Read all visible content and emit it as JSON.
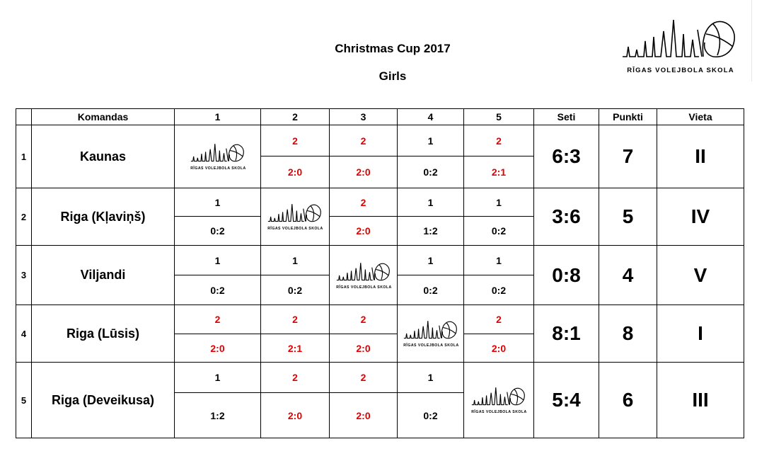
{
  "title": "Christmas Cup 2017",
  "subtitle": "Girls",
  "logo_text": "RĪGAS VOLEJBOLA SKOLA",
  "colors": {
    "win": "#e00000",
    "loss": "#000000",
    "border": "#000000"
  },
  "headers": {
    "index": "",
    "team": "Komandas",
    "c1": "1",
    "c2": "2",
    "c3": "3",
    "c4": "4",
    "c5": "5",
    "sets": "Seti",
    "points": "Punkti",
    "place": "Vieta"
  },
  "rows": [
    {
      "num": "1",
      "team": "Kaunas",
      "r": [
        {
          "pts": "",
          "score": "",
          "win": false,
          "self": true
        },
        {
          "pts": "2",
          "score": "2:0",
          "win": true
        },
        {
          "pts": "2",
          "score": "2:0",
          "win": true
        },
        {
          "pts": "1",
          "score": "0:2",
          "win": false
        },
        {
          "pts": "2",
          "score": "2:1",
          "win": true
        }
      ],
      "sets": "6:3",
      "points": "7",
      "place": "II"
    },
    {
      "num": "2",
      "team": "Riga (Kļaviņš)",
      "r": [
        {
          "pts": "1",
          "score": "0:2",
          "win": false
        },
        {
          "pts": "",
          "score": "",
          "win": false,
          "self": true
        },
        {
          "pts": "2",
          "score": "2:0",
          "win": true
        },
        {
          "pts": "1",
          "score": "1:2",
          "win": false
        },
        {
          "pts": "1",
          "score": "0:2",
          "win": false
        }
      ],
      "sets": "3:6",
      "points": "5",
      "place": "IV"
    },
    {
      "num": "3",
      "team": "Viljandi",
      "r": [
        {
          "pts": "1",
          "score": "0:2",
          "win": false
        },
        {
          "pts": "1",
          "score": "0:2",
          "win": false
        },
        {
          "pts": "",
          "score": "",
          "win": false,
          "self": true
        },
        {
          "pts": "1",
          "score": "0:2",
          "win": false
        },
        {
          "pts": "1",
          "score": "0:2",
          "win": false
        }
      ],
      "sets": "0:8",
      "points": "4",
      "place": "V"
    },
    {
      "num": "4",
      "team": "Riga (Lūsis)",
      "r": [
        {
          "pts": "2",
          "score": "2:0",
          "win": true
        },
        {
          "pts": "2",
          "score": "2:1",
          "win": true
        },
        {
          "pts": "2",
          "score": "2:0",
          "win": true
        },
        {
          "pts": "",
          "score": "",
          "win": false,
          "self": true
        },
        {
          "pts": "2",
          "score": "2:0",
          "win": true
        }
      ],
      "sets": "8:1",
      "points": "8",
      "place": "I"
    },
    {
      "num": "5",
      "team": "Riga (Deveikusa)",
      "r": [
        {
          "pts": "1",
          "score": "1:2",
          "win": false
        },
        {
          "pts": "2",
          "score": "2:0",
          "win": true
        },
        {
          "pts": "2",
          "score": "2:0",
          "win": true
        },
        {
          "pts": "1",
          "score": "0:2",
          "win": false
        },
        {
          "pts": "",
          "score": "",
          "win": false,
          "self": true
        }
      ],
      "sets": "5:4",
      "points": "6",
      "place": "III"
    }
  ]
}
